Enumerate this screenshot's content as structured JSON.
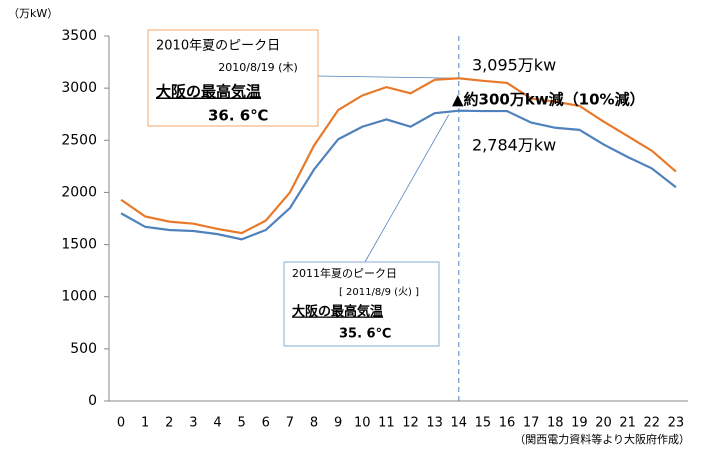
{
  "chart_data": {
    "type": "line",
    "y_unit": "（万kW）",
    "categories": [
      "0",
      "1",
      "2",
      "3",
      "4",
      "5",
      "6",
      "7",
      "8",
      "9",
      "10",
      "11",
      "12",
      "13",
      "14",
      "15",
      "16",
      "17",
      "18",
      "19",
      "20",
      "21",
      "22",
      "23"
    ],
    "series": [
      {
        "color": "#e8792a",
        "values": [
          1930,
          1770,
          1720,
          1700,
          1650,
          1610,
          1730,
          2000,
          2450,
          2790,
          2930,
          3010,
          2950,
          3080,
          3095,
          3070,
          3050,
          2900,
          2870,
          2830,
          2680,
          2540,
          2400,
          2200
        ]
      },
      {
        "color": "#4f81bd",
        "values": [
          1800,
          1670,
          1640,
          1630,
          1600,
          1550,
          1640,
          1850,
          2220,
          2510,
          2630,
          2700,
          2630,
          2760,
          2784,
          2780,
          2780,
          2670,
          2620,
          2600,
          2460,
          2340,
          2230,
          2050
        ]
      }
    ],
    "ylim": [
      0,
      3500
    ],
    "yticks": [
      0,
      500,
      1000,
      1500,
      2000,
      2500,
      3000,
      3500
    ],
    "vline": 14,
    "box_2010": [
      "2010年夏のピーク日",
      "2010/8/19 (木)",
      "大阪の最高気温",
      "36. 6℃"
    ],
    "box_2011": [
      "2011年夏のピーク日",
      "[ 2011/8/9 (火) ]",
      "大阪の最高気温",
      "35. 6℃"
    ],
    "label_2010": "3,095万kw",
    "label_2011": "2,784万kw",
    "label_diff": "▲約300万kw減（10%減）",
    "source": "（関西電力資料等より大阪府作成）"
  }
}
